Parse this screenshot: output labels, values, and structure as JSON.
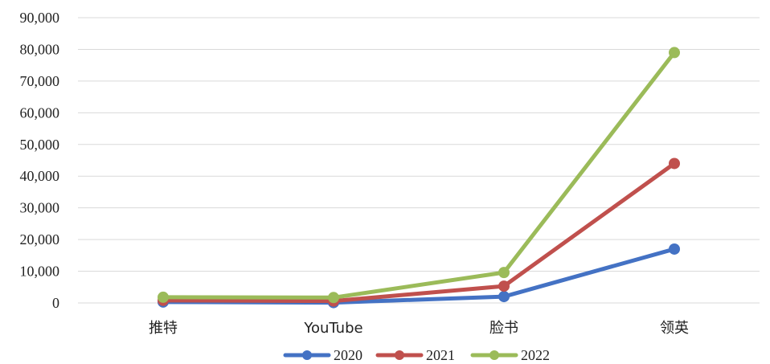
{
  "chart_data": {
    "type": "line",
    "categories": [
      "推特",
      "YouTube",
      "脸书",
      "领英"
    ],
    "series": [
      {
        "name": "2020",
        "color": "#4472C4",
        "values": [
          300,
          100,
          2000,
          17000
        ]
      },
      {
        "name": "2021",
        "color": "#C0504D",
        "values": [
          800,
          600,
          5300,
          44000
        ]
      },
      {
        "name": "2022",
        "color": "#9BBB59",
        "values": [
          1800,
          1700,
          9600,
          79000
        ]
      }
    ],
    "ylim": [
      0,
      90000
    ],
    "yticks": [
      "0",
      "10,000",
      "20,000",
      "30,000",
      "40,000",
      "50,000",
      "60,000",
      "70,000",
      "80,000",
      "90,000"
    ],
    "ytick_values": [
      0,
      10000,
      20000,
      30000,
      40000,
      50000,
      60000,
      70000,
      80000,
      90000
    ],
    "grid": true,
    "legend_position": "bottom"
  }
}
